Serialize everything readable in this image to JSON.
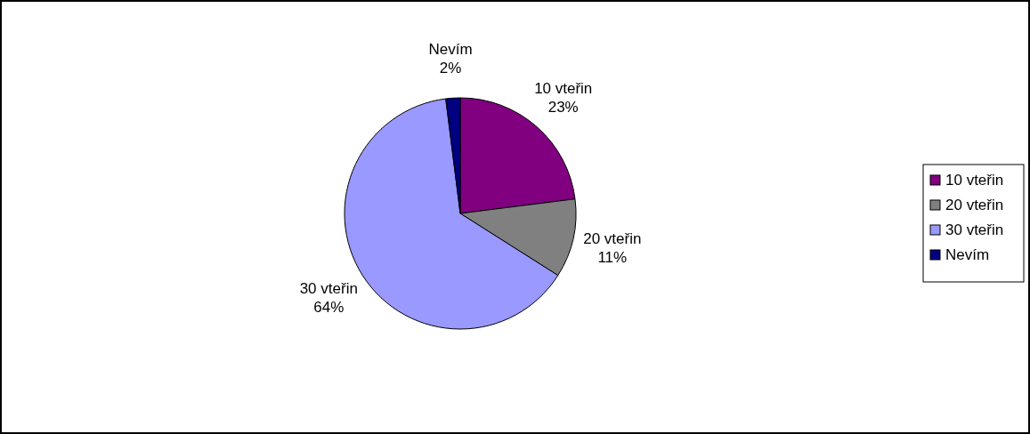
{
  "chart_data": {
    "type": "pie",
    "categories": [
      "10 vteřin",
      "20 vteřin",
      "30 vteřin",
      "Nevím"
    ],
    "values": [
      23,
      11,
      64,
      2
    ],
    "colors": [
      "#800080",
      "#808080",
      "#9999ff",
      "#000080"
    ],
    "value_labels": [
      "23%",
      "11%",
      "64%",
      "2%"
    ],
    "legend": "right"
  }
}
